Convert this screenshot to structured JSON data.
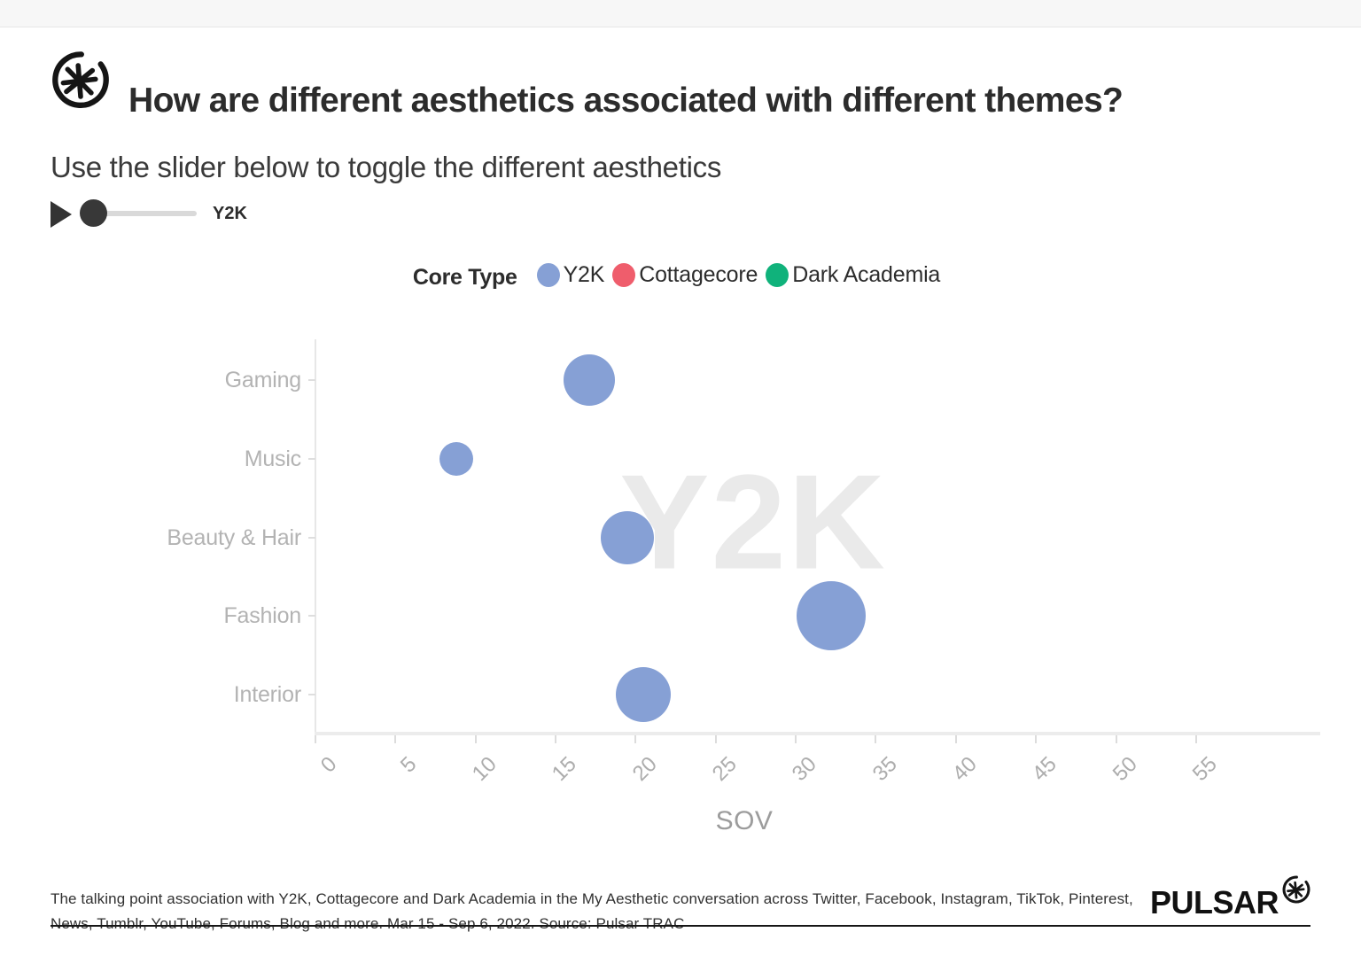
{
  "header": {
    "title": "How are different aesthetics associated with different themes?",
    "subtitle": "Use the slider below to toggle the different aesthetics"
  },
  "slider": {
    "value_label": "Y2K"
  },
  "legend": {
    "title": "Core Type",
    "items": [
      {
        "label": "Y2K",
        "color": "#86a0d5"
      },
      {
        "label": "Cottagecore",
        "color": "#ef5d6c"
      },
      {
        "label": "Dark Academia",
        "color": "#10b27b"
      }
    ]
  },
  "chart_data": {
    "type": "scatter",
    "subtype": "bubble",
    "watermark": "Y2K",
    "xlabel": "SOV",
    "ylabel": "",
    "xlim": [
      0,
      62
    ],
    "x_ticks": [
      0,
      5,
      10,
      15,
      20,
      25,
      30,
      35,
      40,
      45,
      50,
      55
    ],
    "grid": false,
    "legend_position": "top",
    "categories": [
      "Gaming",
      "Music",
      "Beauty & Hair",
      "Fashion",
      "Interior"
    ],
    "series": [
      {
        "name": "Y2K",
        "color": "#86a0d5",
        "points": [
          {
            "category": "Gaming",
            "sov": 17.1,
            "radius_px": 29
          },
          {
            "category": "Music",
            "sov": 8.8,
            "radius_px": 19
          },
          {
            "category": "Beauty & Hair",
            "sov": 19.5,
            "radius_px": 30
          },
          {
            "category": "Fashion",
            "sov": 32.2,
            "radius_px": 39
          },
          {
            "category": "Interior",
            "sov": 20.5,
            "radius_px": 31
          }
        ]
      },
      {
        "name": "Cottagecore",
        "color": "#ef5d6c",
        "points": []
      },
      {
        "name": "Dark Academia",
        "color": "#10b27b",
        "points": []
      }
    ]
  },
  "footer": {
    "note": "The talking point association with Y2K, Cottagecore and Dark Academia in the My Aesthetic conversation across Twitter, Facebook, Instagram, TikTok, Pinterest, News, Tumblr, YouTube, Forums, Blog and more. Mar 15 - Sep 6, 2022. Source: Pulsar TRAC",
    "brand": "PULSAR"
  }
}
